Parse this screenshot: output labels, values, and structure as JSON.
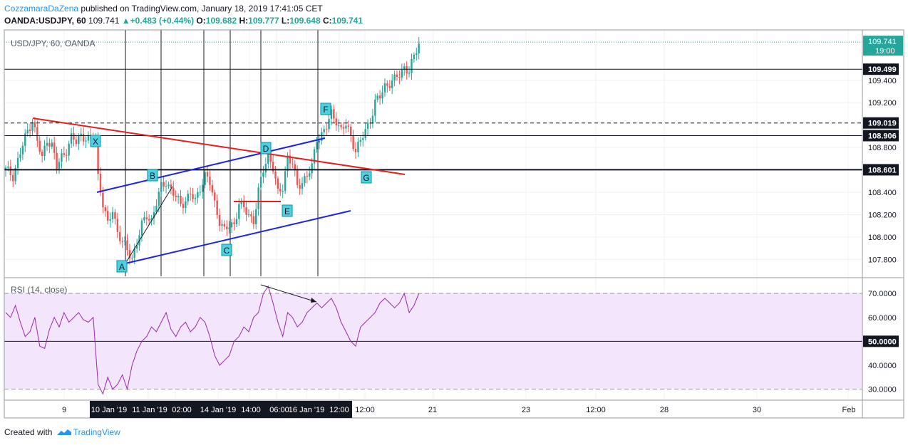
{
  "header": {
    "author": "CozzamaraDaZena",
    "published_text": "published on TradingView.com, January 18, 2019 17:41:05 CET",
    "symbol": "OANDA:USDJPY, 60",
    "last_price": "109.741",
    "change": "+0.483 (+0.44%)",
    "open_label": "O:",
    "open": "109.682",
    "high_label": "H:",
    "high": "109.777",
    "low_label": "L:",
    "low": "109.648",
    "close_label": "C:",
    "close": "109.741"
  },
  "main_pane": {
    "legend": "USD/JPY, 60, OANDA"
  },
  "rsi_pane": {
    "legend": "RSI (14, close)"
  },
  "footer": {
    "created_with": "Created with",
    "brand": "TradingView"
  },
  "colors": {
    "up": "#26a69a",
    "down": "#ef5350",
    "rsi_line": "#9c27b0",
    "rsi_band": "#f3e5fb",
    "trendline_blue": "#1e22e6",
    "trendline_red": "#e61e1e",
    "label_box": "#4dd0e1",
    "price_badge": "#26a69a"
  },
  "chart_data": [
    {
      "type": "candlestick",
      "title": "USD/JPY, 60, OANDA",
      "ylim": [
        107.65,
        109.85
      ],
      "y_ticks": [
        "107.800",
        "108.000",
        "108.200",
        "108.400",
        "108.800",
        "109.200",
        "109.400"
      ],
      "x_ticks": [
        "9",
        "10 Jan '19",
        "11 Jan '19",
        "02:00",
        "14 Jan '19",
        "14:00",
        "06:00",
        "16 Jan '19",
        "12:00",
        "12:00",
        "21",
        "23",
        "12:00",
        "28",
        "30",
        "Feb"
      ],
      "horizontal_levels": [
        {
          "value": 109.499,
          "label": "109.499",
          "style": "solid"
        },
        {
          "value": 109.019,
          "label": "109.019",
          "style": "dashed"
        },
        {
          "value": 108.906,
          "label": "108.906",
          "style": "solid"
        },
        {
          "value": 108.601,
          "label": "108.601",
          "style": "solid-bold"
        }
      ],
      "last_price": {
        "value": 109.741,
        "label": "109.741",
        "countdown": "19:00"
      },
      "pattern_labels": [
        "A",
        "B",
        "C",
        "D",
        "E",
        "F",
        "G",
        "X"
      ],
      "close_path": [
        [
          0,
          108.6
        ],
        [
          3,
          108.55
        ],
        [
          6,
          108.75
        ],
        [
          9,
          108.95
        ],
        [
          11,
          109.05
        ],
        [
          13,
          108.85
        ],
        [
          15,
          108.7
        ],
        [
          17,
          108.88
        ],
        [
          19,
          108.82
        ],
        [
          21,
          108.62
        ],
        [
          23,
          108.72
        ],
        [
          25,
          108.78
        ],
        [
          27,
          108.88
        ],
        [
          29,
          108.85
        ],
        [
          31,
          108.92
        ],
        [
          33,
          108.88
        ],
        [
          35,
          108.85
        ],
        [
          37,
          108.9
        ],
        [
          38,
          108.55
        ],
        [
          40,
          108.3
        ],
        [
          42,
          108.1
        ],
        [
          44,
          108.25
        ],
        [
          46,
          108.05
        ],
        [
          48,
          107.95
        ],
        [
          50,
          107.88
        ],
        [
          52,
          107.82
        ],
        [
          54,
          107.95
        ],
        [
          56,
          108.1
        ],
        [
          58,
          108.2
        ],
        [
          60,
          108.15
        ],
        [
          62,
          108.3
        ],
        [
          64,
          108.45
        ],
        [
          66,
          108.5
        ],
        [
          68,
          108.42
        ],
        [
          70,
          108.35
        ],
        [
          72,
          108.3
        ],
        [
          74,
          108.33
        ],
        [
          76,
          108.38
        ],
        [
          78,
          108.32
        ],
        [
          80,
          108.45
        ],
        [
          82,
          108.55
        ],
        [
          84,
          108.48
        ],
        [
          86,
          108.3
        ],
        [
          88,
          108.15
        ],
        [
          90,
          108.05
        ],
        [
          92,
          108.1
        ],
        [
          94,
          108.12
        ],
        [
          96,
          108.3
        ],
        [
          98,
          108.25
        ],
        [
          100,
          108.2
        ],
        [
          102,
          108.15
        ],
        [
          104,
          108.4
        ],
        [
          106,
          108.6
        ],
        [
          108,
          108.75
        ],
        [
          110,
          108.62
        ],
        [
          112,
          108.38
        ],
        [
          114,
          108.45
        ],
        [
          116,
          108.72
        ],
        [
          118,
          108.65
        ],
        [
          120,
          108.45
        ],
        [
          122,
          108.5
        ],
        [
          124,
          108.55
        ],
        [
          126,
          108.62
        ],
        [
          128,
          108.88
        ],
        [
          130,
          108.92
        ],
        [
          132,
          108.98
        ],
        [
          134,
          109.1
        ],
        [
          136,
          109.05
        ],
        [
          138,
          108.95
        ],
        [
          140,
          109.0
        ],
        [
          142,
          108.9
        ],
        [
          144,
          108.78
        ],
        [
          146,
          108.85
        ],
        [
          148,
          108.95
        ],
        [
          150,
          109.05
        ],
        [
          152,
          109.2
        ],
        [
          154,
          109.25
        ],
        [
          156,
          109.35
        ],
        [
          158,
          109.38
        ],
        [
          160,
          109.4
        ],
        [
          162,
          109.45
        ],
        [
          164,
          109.52
        ],
        [
          166,
          109.48
        ],
        [
          168,
          109.6
        ],
        [
          170,
          109.74
        ]
      ]
    },
    {
      "type": "line",
      "title": "RSI (14, close)",
      "ylim": [
        26,
        76
      ],
      "y_ticks": [
        "30.0000",
        "40.0000",
        "50.0000",
        "60.0000",
        "70.0000"
      ],
      "levels": [
        30,
        50,
        70
      ],
      "series": [
        {
          "name": "RSI (14, close)",
          "points": [
            [
              0,
              62
            ],
            [
              2,
              60
            ],
            [
              4,
              65
            ],
            [
              6,
              58
            ],
            [
              8,
              52
            ],
            [
              10,
              54
            ],
            [
              12,
              60
            ],
            [
              14,
              48
            ],
            [
              16,
              47
            ],
            [
              18,
              55
            ],
            [
              20,
              60
            ],
            [
              22,
              56
            ],
            [
              24,
              62
            ],
            [
              26,
              58
            ],
            [
              28,
              60
            ],
            [
              30,
              62
            ],
            [
              32,
              59
            ],
            [
              34,
              58
            ],
            [
              36,
              60
            ],
            [
              38,
              32
            ],
            [
              40,
              28
            ],
            [
              42,
              35
            ],
            [
              44,
              30
            ],
            [
              46,
              32
            ],
            [
              48,
              36
            ],
            [
              50,
              30
            ],
            [
              52,
              40
            ],
            [
              54,
              46
            ],
            [
              56,
              50
            ],
            [
              58,
              52
            ],
            [
              60,
              56
            ],
            [
              62,
              54
            ],
            [
              64,
              58
            ],
            [
              66,
              62
            ],
            [
              68,
              55
            ],
            [
              70,
              52
            ],
            [
              72,
              56
            ],
            [
              74,
              58
            ],
            [
              76,
              54
            ],
            [
              78,
              56
            ],
            [
              80,
              60
            ],
            [
              82,
              58
            ],
            [
              84,
              52
            ],
            [
              86,
              44
            ],
            [
              88,
              40
            ],
            [
              90,
              42
            ],
            [
              92,
              44
            ],
            [
              94,
              50
            ],
            [
              96,
              52
            ],
            [
              98,
              56
            ],
            [
              100,
              54
            ],
            [
              102,
              60
            ],
            [
              104,
              62
            ],
            [
              106,
              70
            ],
            [
              108,
              73
            ],
            [
              110,
              66
            ],
            [
              112,
              58
            ],
            [
              114,
              52
            ],
            [
              116,
              62
            ],
            [
              118,
              60
            ],
            [
              120,
              56
            ],
            [
              122,
              58
            ],
            [
              124,
              62
            ],
            [
              126,
              64
            ],
            [
              128,
              66
            ],
            [
              130,
              64
            ],
            [
              132,
              66
            ],
            [
              134,
              68
            ],
            [
              136,
              64
            ],
            [
              138,
              58
            ],
            [
              140,
              54
            ],
            [
              142,
              50
            ],
            [
              144,
              48
            ],
            [
              146,
              56
            ],
            [
              148,
              58
            ],
            [
              150,
              60
            ],
            [
              152,
              62
            ],
            [
              154,
              66
            ],
            [
              156,
              68
            ],
            [
              158,
              66
            ],
            [
              160,
              64
            ],
            [
              162,
              66
            ],
            [
              164,
              70
            ],
            [
              166,
              62
            ],
            [
              168,
              65
            ],
            [
              170,
              70
            ]
          ]
        }
      ]
    }
  ]
}
